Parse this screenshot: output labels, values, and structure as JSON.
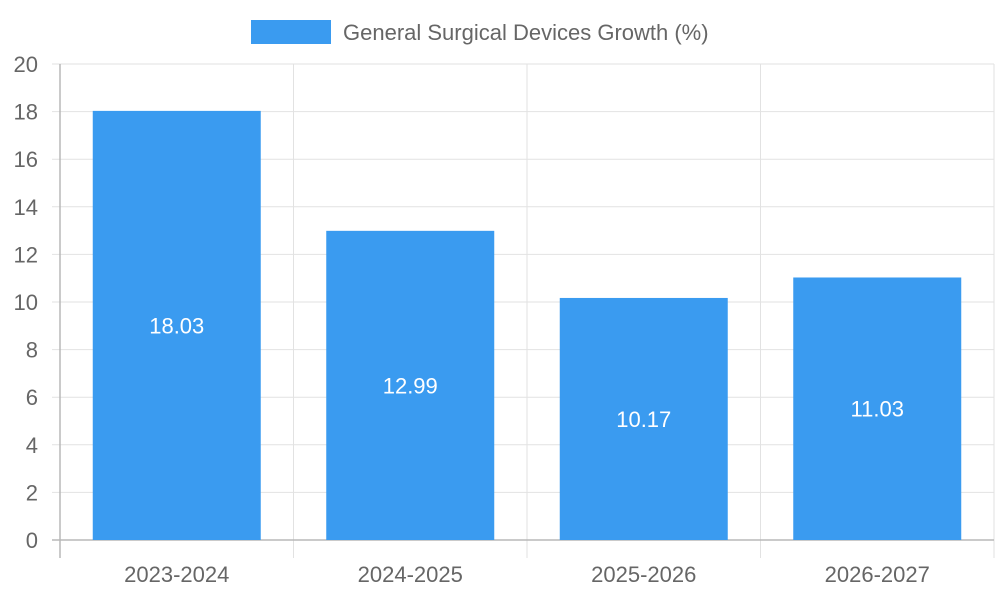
{
  "chart_data": {
    "type": "bar",
    "title": "",
    "xlabel": "",
    "ylabel": "",
    "categories": [
      "2023-2024",
      "2024-2025",
      "2025-2026",
      "2026-2027"
    ],
    "series": [
      {
        "name": "General Surgical Devices Growth (%)",
        "values": [
          18.03,
          12.99,
          10.17,
          11.03
        ],
        "value_labels": [
          "18.03",
          "12.99",
          "10.17",
          "11.03"
        ],
        "color": "#3a9bf0"
      }
    ],
    "ylim": [
      0,
      20
    ],
    "y_ticks": [
      0,
      2,
      4,
      6,
      8,
      10,
      12,
      14,
      16,
      18,
      20
    ],
    "grid": true,
    "legend": "top-center"
  },
  "colors": {
    "grid": "#e2e2e2",
    "axis": "#b8b8b8",
    "text": "#666666",
    "bar_text": "#ffffff"
  }
}
